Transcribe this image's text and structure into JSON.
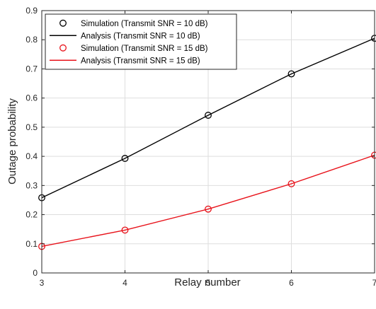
{
  "chart_data": {
    "type": "line",
    "xlabel": "Relay number",
    "ylabel": "Outage probability",
    "xlim": [
      3,
      7
    ],
    "ylim": [
      0,
      0.9
    ],
    "xticks": [
      3,
      4,
      5,
      6,
      7
    ],
    "yticks": [
      0,
      0.1,
      0.2,
      0.3,
      0.4,
      0.5,
      0.6,
      0.7,
      0.8,
      0.9
    ],
    "grid": true,
    "legend_position": "top-left",
    "series": [
      {
        "name": "Simulation (Transmit SNR = 10 dB)",
        "style": "marker",
        "marker": "circle",
        "color": "#000000",
        "x": [
          3,
          4,
          5,
          6,
          7
        ],
        "y": [
          0.258,
          0.393,
          0.541,
          0.683,
          0.805
        ]
      },
      {
        "name": "Analysis (Transmit SNR = 10 dB)",
        "style": "line",
        "color": "#000000",
        "x": [
          3,
          4,
          5,
          6,
          7
        ],
        "y": [
          0.258,
          0.393,
          0.541,
          0.683,
          0.805
        ]
      },
      {
        "name": "Simulation (Transmit SNR = 15 dB)",
        "style": "marker",
        "marker": "circle",
        "color": "#e8131b",
        "x": [
          3,
          4,
          5,
          6,
          7
        ],
        "y": [
          0.091,
          0.147,
          0.219,
          0.306,
          0.404
        ]
      },
      {
        "name": "Analysis (Transmit SNR = 15 dB)",
        "style": "line",
        "color": "#e8131b",
        "x": [
          3,
          4,
          5,
          6,
          7
        ],
        "y": [
          0.091,
          0.147,
          0.219,
          0.306,
          0.404
        ]
      }
    ]
  }
}
